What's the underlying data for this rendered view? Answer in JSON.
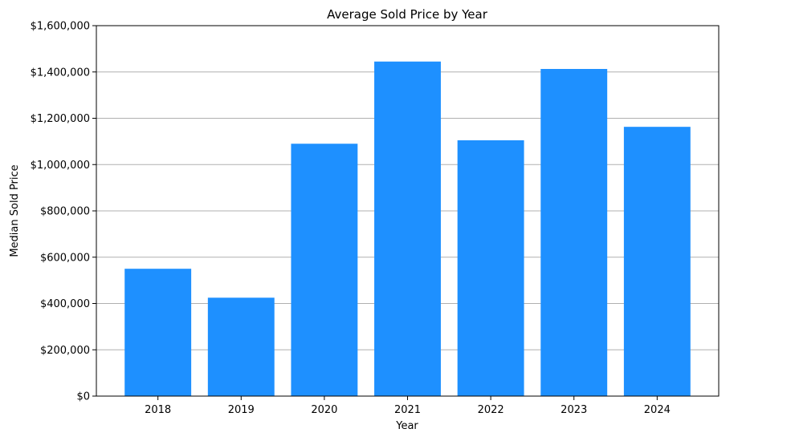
{
  "chart_data": {
    "type": "bar",
    "title": "Average Sold Price by Year",
    "xlabel": "Year",
    "ylabel": "Median Sold Price",
    "categories": [
      "2018",
      "2019",
      "2020",
      "2021",
      "2022",
      "2023",
      "2024"
    ],
    "values": [
      550000,
      425000,
      1090000,
      1445000,
      1105000,
      1413000,
      1163000
    ],
    "ylim": [
      0,
      1600000
    ],
    "yticks": [
      0,
      200000,
      400000,
      600000,
      800000,
      1000000,
      1200000,
      1400000,
      1600000
    ],
    "ytick_labels": [
      "$0",
      "$200,000",
      "$400,000",
      "$600,000",
      "$800,000",
      "$1,000,000",
      "$1,200,000",
      "$1,400,000",
      "$1,600,000"
    ],
    "grid": "y-major",
    "legend": "none",
    "bar_color": "#1e90ff"
  }
}
